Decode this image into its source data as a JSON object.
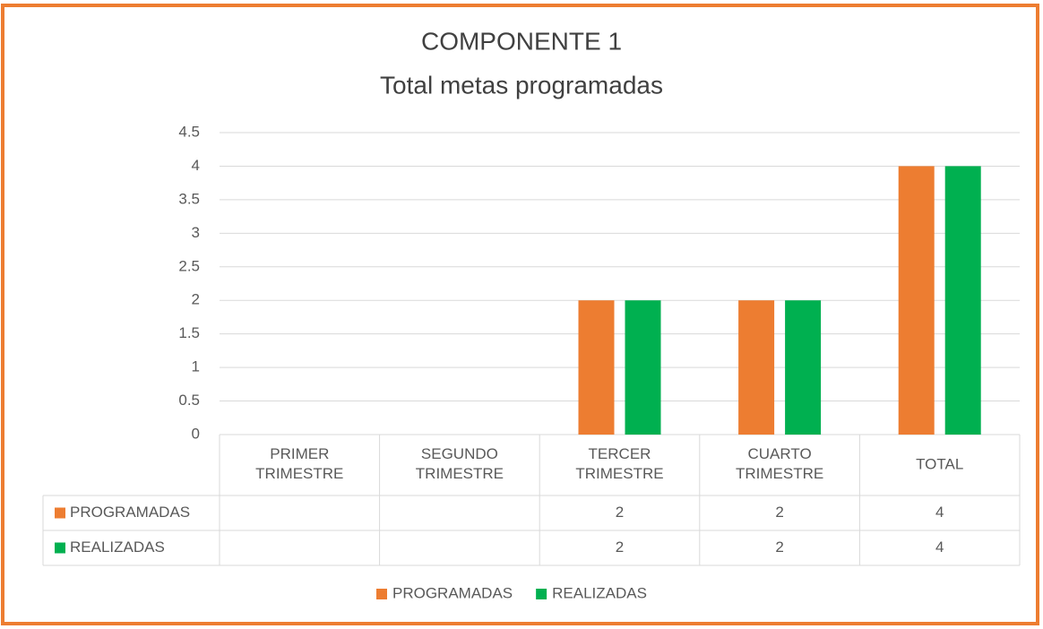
{
  "chart_data": {
    "type": "bar",
    "title": "COMPONENTE 1",
    "subtitle": "Total metas programadas",
    "categories": [
      "PRIMER TRIMESTRE",
      "SEGUNDO TRIMESTRE",
      "TERCER TRIMESTRE",
      "CUARTO TRIMESTRE",
      "TOTAL"
    ],
    "series": [
      {
        "name": "PROGRAMADAS",
        "color": "#ed7d31",
        "values": [
          null,
          null,
          2,
          2,
          4
        ]
      },
      {
        "name": "REALIZADAS",
        "color": "#00b050",
        "values": [
          null,
          null,
          2,
          2,
          4
        ]
      }
    ],
    "ylim": [
      0,
      4.5
    ],
    "yticks": [
      0,
      0.5,
      1,
      1.5,
      2,
      2.5,
      3,
      3.5,
      4,
      4.5
    ],
    "grid": true,
    "legend": "bottom",
    "data_table": true
  }
}
